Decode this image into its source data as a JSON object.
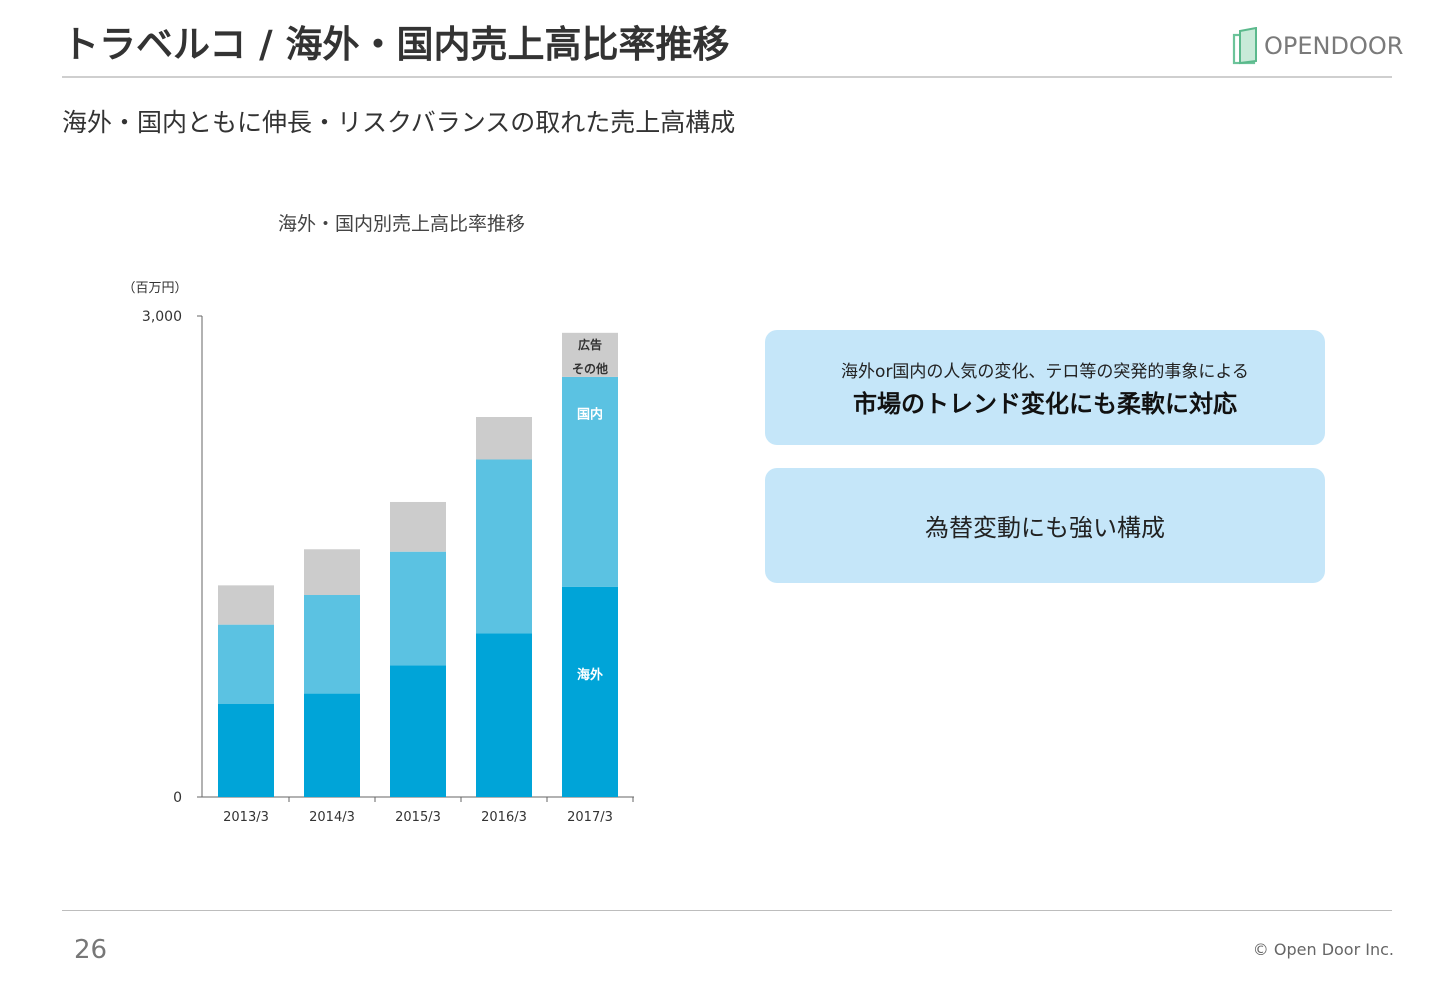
{
  "header": {
    "title": "トラベルコ / 海外・国内売上高比率推移",
    "logo_text": "OPENDOOR"
  },
  "subtitle": "海外・国内ともに伸長・リスクバランスの取れた売上高構成",
  "callouts": {
    "first_line1": "海外or国内の人気の変化、テロ等の突発的事象による",
    "first_line2": "市場のトレンド変化にも柔軟に対応",
    "second": "為替変動にも強い構成"
  },
  "footer": {
    "page_number": "26",
    "copyright": "© Open Door Inc."
  },
  "colors": {
    "overseas": "#00a4d8",
    "domestic": "#5bc2e2",
    "other": "#cccccc",
    "callout_bg": "#c5e6f9"
  },
  "chart_data": {
    "type": "bar",
    "stacked": true,
    "title": "海外・国内別売上高比率推移",
    "unit_label": "（百万円）",
    "ylim": [
      0,
      3000
    ],
    "yticks": [
      {
        "value": 0,
        "label": "0"
      },
      {
        "value": 3000,
        "label": "3,000"
      }
    ],
    "categories": [
      "2013/3",
      "2014/3",
      "2015/3",
      "2016/3",
      "2017/3"
    ],
    "series": [
      {
        "name": "海外",
        "values": [
          580,
          645,
          820,
          1020,
          1310
        ]
      },
      {
        "name": "国内",
        "values": [
          495,
          615,
          710,
          1085,
          1310
        ]
      },
      {
        "name": "広告 その他",
        "values": [
          245,
          285,
          310,
          265,
          275
        ]
      }
    ],
    "labels": {
      "overseas": "海外",
      "domestic": "国内",
      "other_line1": "広告",
      "other_line2": "その他"
    }
  }
}
